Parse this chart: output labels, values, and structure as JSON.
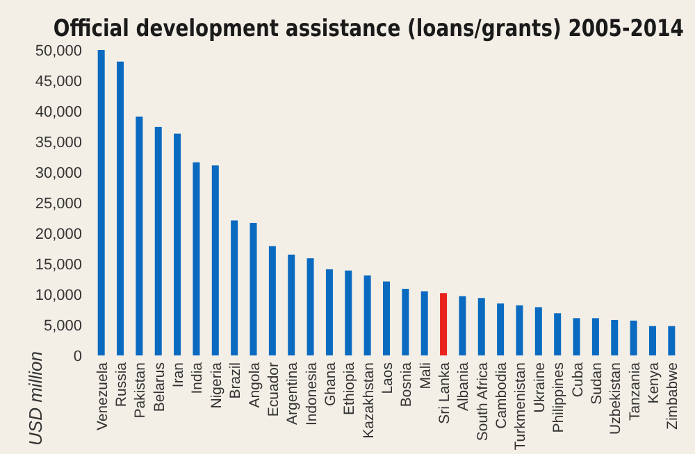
{
  "chart_data": {
    "type": "bar",
    "title": "Official development assistance (loans/grants) 2005-2014",
    "ylabel": "USD million",
    "categories": [
      "Venezuela",
      "Russia",
      "Pakistan",
      "Belarus",
      "Iran",
      "India",
      "Nigeria",
      "Brazil",
      "Angola",
      "Ecuador",
      "Argentina",
      "Indonesia",
      "Ghana",
      "Ethiopia",
      "Kazakhstan",
      "Laos",
      "Bosnia",
      "Mali",
      "Sri Lanka",
      "Albania",
      "South Africa",
      "Cambodia",
      "Turkmenistan",
      "Ukraine",
      "Philippines",
      "Cuba",
      "Sudan",
      "Uzbekistan",
      "Tanzania",
      "Kenya",
      "Zimbabwe"
    ],
    "values": [
      50000,
      48100,
      39100,
      37400,
      36300,
      31600,
      31100,
      22100,
      21700,
      17900,
      16500,
      15900,
      14100,
      13900,
      13100,
      12100,
      10900,
      10500,
      10200,
      9700,
      9400,
      8500,
      8200,
      7900,
      6900,
      6100,
      6100,
      5800,
      5700,
      4800,
      4800
    ],
    "colors": [
      "#0a6ac0",
      "#0a6ac0",
      "#0a6ac0",
      "#0a6ac0",
      "#0a6ac0",
      "#0a6ac0",
      "#0a6ac0",
      "#0a6ac0",
      "#0a6ac0",
      "#0a6ac0",
      "#0a6ac0",
      "#0a6ac0",
      "#0a6ac0",
      "#0a6ac0",
      "#0a6ac0",
      "#0a6ac0",
      "#0a6ac0",
      "#0a6ac0",
      "#e8221c",
      "#0a6ac0",
      "#0a6ac0",
      "#0a6ac0",
      "#0a6ac0",
      "#0a6ac0",
      "#0a6ac0",
      "#0a6ac0",
      "#0a6ac0",
      "#0a6ac0",
      "#0a6ac0",
      "#0a6ac0",
      "#0a6ac0"
    ],
    "ylim": [
      0,
      50000
    ],
    "yticks": [
      {
        "value": 0,
        "label": "0"
      },
      {
        "value": 5000,
        "label": "5,000"
      },
      {
        "value": 10000,
        "label": "10,000"
      },
      {
        "value": 15000,
        "label": "15,000"
      },
      {
        "value": 20000,
        "label": "20,000"
      },
      {
        "value": 25000,
        "label": "25,000"
      },
      {
        "value": 30000,
        "label": "30,000"
      },
      {
        "value": 35000,
        "label": "35,000"
      },
      {
        "value": 40000,
        "label": "40,000"
      },
      {
        "value": 45000,
        "label": "45,000"
      },
      {
        "value": 50000,
        "label": "50,000"
      }
    ],
    "grid": false
  }
}
